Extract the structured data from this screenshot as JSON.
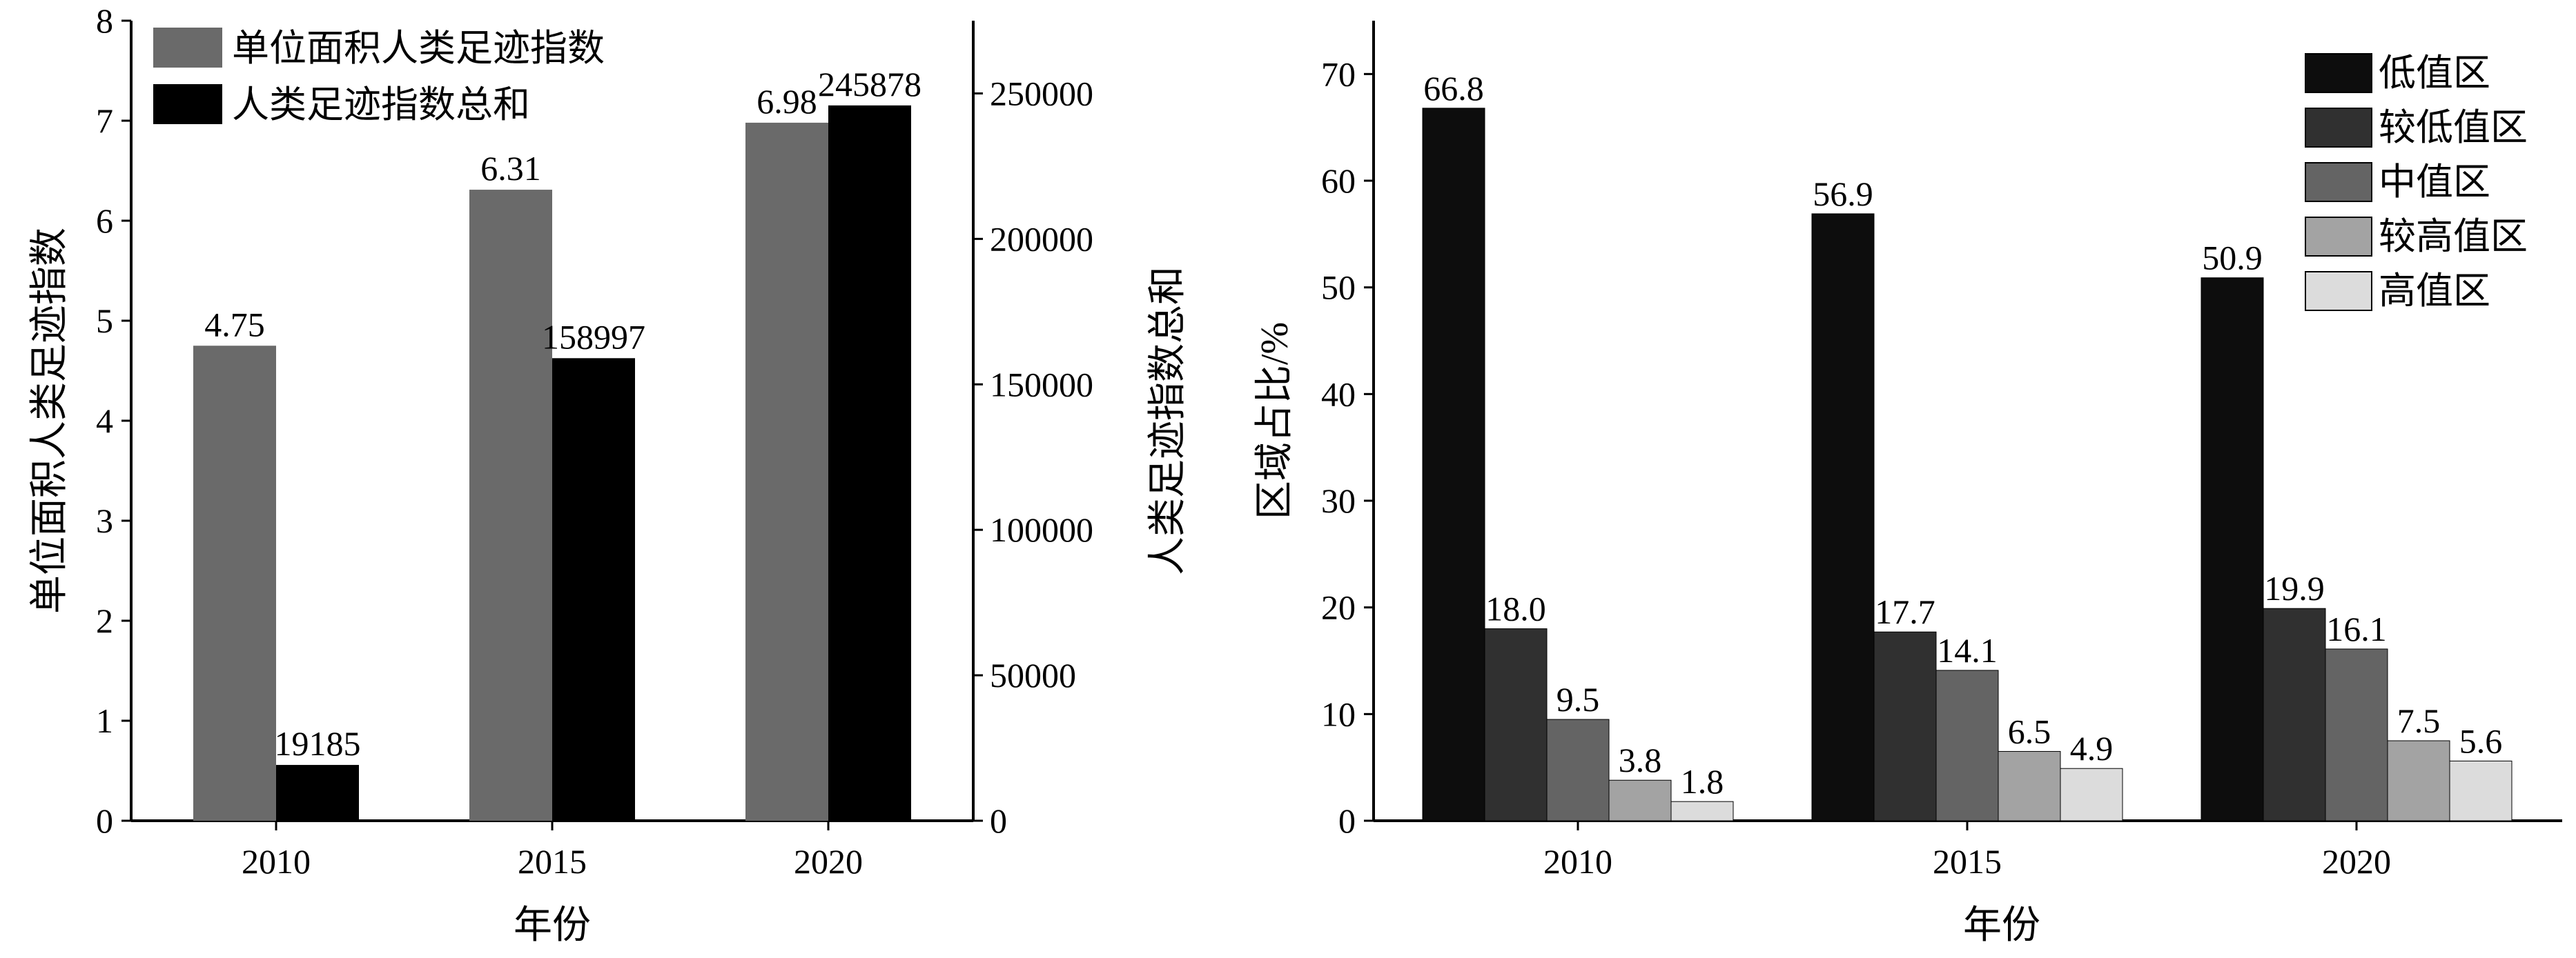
{
  "chart_data": [
    {
      "type": "bar",
      "categories": [
        "2010",
        "2015",
        "2020"
      ],
      "xlabel": "年份",
      "ylabel": "单位面积人类足迹指数",
      "ylabel_right": "人类足迹指数总和",
      "ylim": [
        0,
        8
      ],
      "ylim_right": [
        0,
        275000
      ],
      "yticks": [
        "0",
        "1",
        "2",
        "3",
        "4",
        "5",
        "6",
        "7",
        "8"
      ],
      "yticks_right": [
        "0",
        "50000",
        "100000",
        "150000",
        "200000",
        "250000"
      ],
      "legend_position": "top-left",
      "series": [
        {
          "name": "单位面积人类足迹指数",
          "axis": "left",
          "color": "#6a6a6a",
          "values": [
            4.75,
            6.31,
            6.98
          ],
          "labels": [
            "4.75",
            "6.31",
            "6.98"
          ]
        },
        {
          "name": "人类足迹指数总和",
          "axis": "right",
          "color": "#000000",
          "values": [
            19185,
            158997,
            245878
          ],
          "labels": [
            "19185",
            "158997",
            "245878"
          ]
        }
      ]
    },
    {
      "type": "bar",
      "categories": [
        "2010",
        "2015",
        "2020"
      ],
      "xlabel": "年份",
      "ylabel": "区域占比/%",
      "ylim": [
        0,
        75
      ],
      "yticks": [
        "0",
        "10",
        "20",
        "30",
        "40",
        "50",
        "60",
        "70"
      ],
      "legend_position": "top-right",
      "series": [
        {
          "name": "低值区",
          "color": "#0d0d0d",
          "values": [
            66.8,
            56.9,
            50.9
          ],
          "labels": [
            "66.8",
            "56.9",
            "50.9"
          ]
        },
        {
          "name": "较低值区",
          "color": "#303030",
          "values": [
            18.0,
            17.7,
            19.9
          ],
          "labels": [
            "18.0",
            "17.7",
            "19.9"
          ]
        },
        {
          "name": "中值区",
          "color": "#646464",
          "values": [
            9.5,
            14.1,
            16.1
          ],
          "labels": [
            "9.5",
            "14.1",
            "16.1"
          ]
        },
        {
          "name": "较高值区",
          "color": "#a3a3a3",
          "values": [
            3.8,
            6.5,
            7.5
          ],
          "labels": [
            "3.8",
            "6.5",
            "7.5"
          ]
        },
        {
          "name": "高值区",
          "color": "#dcdcdc",
          "values": [
            1.8,
            4.9,
            5.6
          ],
          "labels": [
            "1.8",
            "4.9",
            "5.6"
          ]
        }
      ]
    }
  ]
}
